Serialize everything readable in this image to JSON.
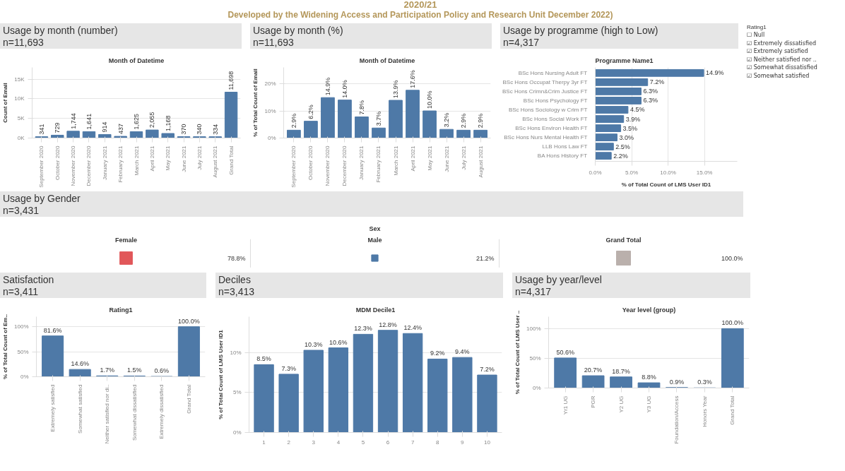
{
  "chart_data": [
    {
      "type": "other",
      "title": "2020/21",
      "subtitle": "Developed by the Widening Access and Participation Policy and Research Unit December 2022)"
    },
    {
      "type": "bar",
      "title": "Usage by month (number)",
      "subtitle": "n=11,693",
      "xlabel": "Month of Datetime",
      "ylabel": "Count of Email",
      "categories": [
        "September 2020",
        "October 2020",
        "November 2020",
        "December 2020",
        "January 2021",
        "February 2021",
        "March 2021",
        "April 2021",
        "May 2021",
        "June 2021",
        "July 2021",
        "August 2021",
        "Grand Total"
      ],
      "values": [
        341,
        729,
        1744,
        1641,
        914,
        437,
        1625,
        2055,
        1168,
        370,
        340,
        334,
        11698
      ],
      "value_labels": [
        "341",
        "729",
        "1,744",
        "1,641",
        "914",
        "437",
        "1,625",
        "2,055",
        "1,168",
        "370",
        "340",
        "334",
        "11,698"
      ],
      "color": "#4e79a7",
      "ylim": [
        0,
        18000
      ],
      "yticks": [
        {
          "value": 0,
          "label": "0K"
        },
        {
          "value": 5000,
          "label": "5K"
        },
        {
          "value": 10000,
          "label": "10K"
        },
        {
          "value": 15000,
          "label": "15K"
        }
      ],
      "grid": "y"
    },
    {
      "type": "bar",
      "title": "Usage by month (%)",
      "subtitle": "n=11,693",
      "xlabel": "Month of Datetime",
      "ylabel": "% of Total Count of Email",
      "categories": [
        "September 2020",
        "October 2020",
        "November 2020",
        "December 2020",
        "January 2021",
        "February 2021",
        "March 2021",
        "April 2021",
        "May 2021",
        "June 2021",
        "July 2021",
        "August 2021"
      ],
      "values": [
        2.9,
        6.2,
        14.9,
        14.0,
        7.8,
        3.7,
        13.9,
        17.6,
        10.0,
        3.2,
        2.9,
        2.9
      ],
      "value_labels": [
        "2.9%",
        "6.2%",
        "14.9%",
        "14.0%",
        "7.8%",
        "3.7%",
        "13.9%",
        "17.6%",
        "10.0%",
        "3.2%",
        "2.9%",
        "2.9%"
      ],
      "color": "#4e79a7",
      "ylim": [
        0,
        26
      ],
      "yticks": [
        {
          "value": 0,
          "label": "0%"
        },
        {
          "value": 10,
          "label": "10%"
        },
        {
          "value": 20,
          "label": "20%"
        }
      ],
      "grid": "y"
    },
    {
      "type": "bar",
      "orientation": "horizontal",
      "title": "Usage by programme (high to Low)",
      "subtitle": "n=4,317",
      "ylabel": "Programme Name1",
      "xlabel": "% of Total Count of LMS User ID1",
      "categories": [
        "BSc Hons Nursing Adult FT",
        "BSc Hons Occupat Therpy 3yr FT",
        "BSc Hons Crimn&Crim Justice FT",
        "BSc Hons Psychology FT",
        "BSc Hons Sociology w Crim FT",
        "BSc Hons Social Work FT",
        "BSc Hons Environ Health FT",
        "BSc Hons Nurs Mental Health FT",
        "LLB Hons Law FT",
        "BA Hons History FT"
      ],
      "values": [
        14.9,
        7.2,
        6.3,
        6.3,
        4.5,
        3.9,
        3.5,
        3.0,
        2.5,
        2.2
      ],
      "value_labels": [
        "14.9%",
        "7.2%",
        "6.3%",
        "6.3%",
        "4.5%",
        "3.9%",
        "3.5%",
        "3.0%",
        "2.5%",
        "2.2%"
      ],
      "color": "#4e79a7",
      "xlim": [
        0,
        19.5
      ],
      "xticks": [
        {
          "value": 0,
          "label": "0.0%"
        },
        {
          "value": 5,
          "label": "5.0%"
        },
        {
          "value": 10,
          "label": "10.0%"
        },
        {
          "value": 15,
          "label": "15.0%"
        }
      ],
      "grid": "x"
    },
    {
      "type": "other",
      "title": "Rating1",
      "annotations": [
        "☐ Null",
        "☑ Extremely dissatisfied",
        "☑ Extremely satisfied",
        "☑ Neither satisfied nor ..",
        "☑ Somewhat dissatisfied",
        "☑ Somewhat satisfied"
      ]
    },
    {
      "type": "other",
      "title": "Usage by Gender",
      "subtitle": "n=3,431",
      "xlabel": "Sex",
      "categories": [
        "Female",
        "Male",
        "Grand Total"
      ],
      "values": [
        78.8,
        21.2,
        100.0
      ],
      "value_labels": [
        "78.8%",
        "21.2%",
        "100.0%"
      ],
      "colors": [
        "#e15759",
        "#4e79a7",
        "#bab0ac"
      ]
    },
    {
      "type": "bar",
      "title": "Satisfaction",
      "subtitle": "n=3,411",
      "xlabel": "Rating1",
      "ylabel": "% of Total Count of Em..",
      "categories": [
        "Extremely satisfied",
        "Somewhat satisfied",
        "Neither satisfied nor di..",
        "Somewhat dissatisfied",
        "Extremely dissatisfied",
        "Grand Total"
      ],
      "values": [
        81.6,
        14.6,
        1.7,
        1.5,
        0.6,
        100.0
      ],
      "value_labels": [
        "81.6%",
        "14.6%",
        "1.7%",
        "1.5%",
        "0.6%",
        "100.0%"
      ],
      "color": "#4e79a7",
      "ylim": [
        0,
        120
      ],
      "yticks": [
        {
          "value": 0,
          "label": "0%"
        },
        {
          "value": 50,
          "label": "50%"
        },
        {
          "value": 100,
          "label": "100%"
        }
      ],
      "grid": "y"
    },
    {
      "type": "bar",
      "title": "Deciles",
      "subtitle": "n=3,413",
      "xlabel": "MDM Decile1",
      "ylabel": "% of Total Count of LMS User ID1",
      "categories": [
        "1",
        "2",
        "3",
        "4",
        "5",
        "6",
        "7",
        "8",
        "9",
        "10"
      ],
      "values": [
        8.5,
        7.3,
        10.3,
        10.6,
        12.3,
        12.8,
        12.4,
        9.2,
        9.4,
        7.2
      ],
      "value_labels": [
        "8.5%",
        "7.3%",
        "10.3%",
        "10.6%",
        "12.3%",
        "12.8%",
        "12.4%",
        "9.2%",
        "9.4%",
        "7.2%"
      ],
      "color": "#4e79a7",
      "ylim": [
        0,
        14.5
      ],
      "yticks": [
        {
          "value": 0,
          "label": "0%"
        },
        {
          "value": 5,
          "label": "5%"
        },
        {
          "value": 10,
          "label": "10%"
        }
      ],
      "grid": "y"
    },
    {
      "type": "bar",
      "title": "Usage by year/level",
      "subtitle": "n=4,317",
      "xlabel": "Year level (group)",
      "ylabel": "% of Total Count of LMS User ..",
      "categories": [
        "Yr1 UG",
        "PGR",
        "Y2 UG",
        "Y3 UG",
        "Foundation/Access",
        "Honors Year",
        "Grand Total"
      ],
      "values": [
        50.6,
        20.7,
        18.7,
        8.8,
        0.9,
        0.3,
        100.0
      ],
      "value_labels": [
        "50.6%",
        "20.7%",
        "18.7%",
        "8.8%",
        "0.9%",
        "0.3%",
        "100.0%"
      ],
      "color": "#4e79a7",
      "ylim": [
        0,
        120
      ],
      "yticks": [
        {
          "value": 0,
          "label": "0%"
        },
        {
          "value": 50,
          "label": "50%"
        },
        {
          "value": 100,
          "label": "100%"
        }
      ],
      "grid": "y"
    }
  ]
}
